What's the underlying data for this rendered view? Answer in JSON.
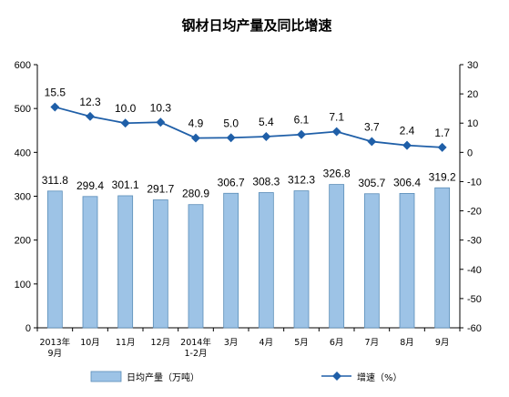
{
  "chart_data": {
    "type": "bar+line",
    "title": "钢材日均产量及同比增速",
    "categories": [
      [
        "2013年",
        "9月"
      ],
      [
        "10月"
      ],
      [
        "11月"
      ],
      [
        "12月"
      ],
      [
        "2014年",
        "1-2月"
      ],
      [
        "3月"
      ],
      [
        "4月"
      ],
      [
        "5月"
      ],
      [
        "6月"
      ],
      [
        "7月"
      ],
      [
        "8月"
      ],
      [
        "9月"
      ]
    ],
    "series": [
      {
        "name": "日均产量（万吨）",
        "type": "bar",
        "axis": "left",
        "color": "#9DC3E6",
        "values": [
          311.8,
          299.4,
          301.1,
          291.7,
          280.9,
          306.7,
          308.3,
          312.3,
          326.8,
          305.7,
          306.4,
          319.2
        ],
        "labels": [
          "311.8",
          "299.4",
          "301.1",
          "291.7",
          "280.9",
          "306.7",
          "308.3",
          "312.3",
          "326.8",
          "305.7",
          "306.4",
          "319.2"
        ]
      },
      {
        "name": "增速（%）",
        "type": "line",
        "axis": "right",
        "color": "#1F5FA8",
        "values": [
          15.5,
          12.3,
          10.0,
          10.3,
          4.9,
          5.0,
          5.4,
          6.1,
          7.1,
          3.7,
          2.4,
          1.7
        ],
        "labels": [
          "15.5",
          "12.3",
          "10.0",
          "10.3",
          "4.9",
          "5.0",
          "5.4",
          "6.1",
          "7.1",
          "3.7",
          "2.4",
          "1.7"
        ]
      }
    ],
    "y_left": {
      "min": 0,
      "max": 600,
      "step": 100
    },
    "y_right": {
      "min": -60,
      "max": 30,
      "step": 10
    },
    "grid": false,
    "legend": "bottom"
  }
}
